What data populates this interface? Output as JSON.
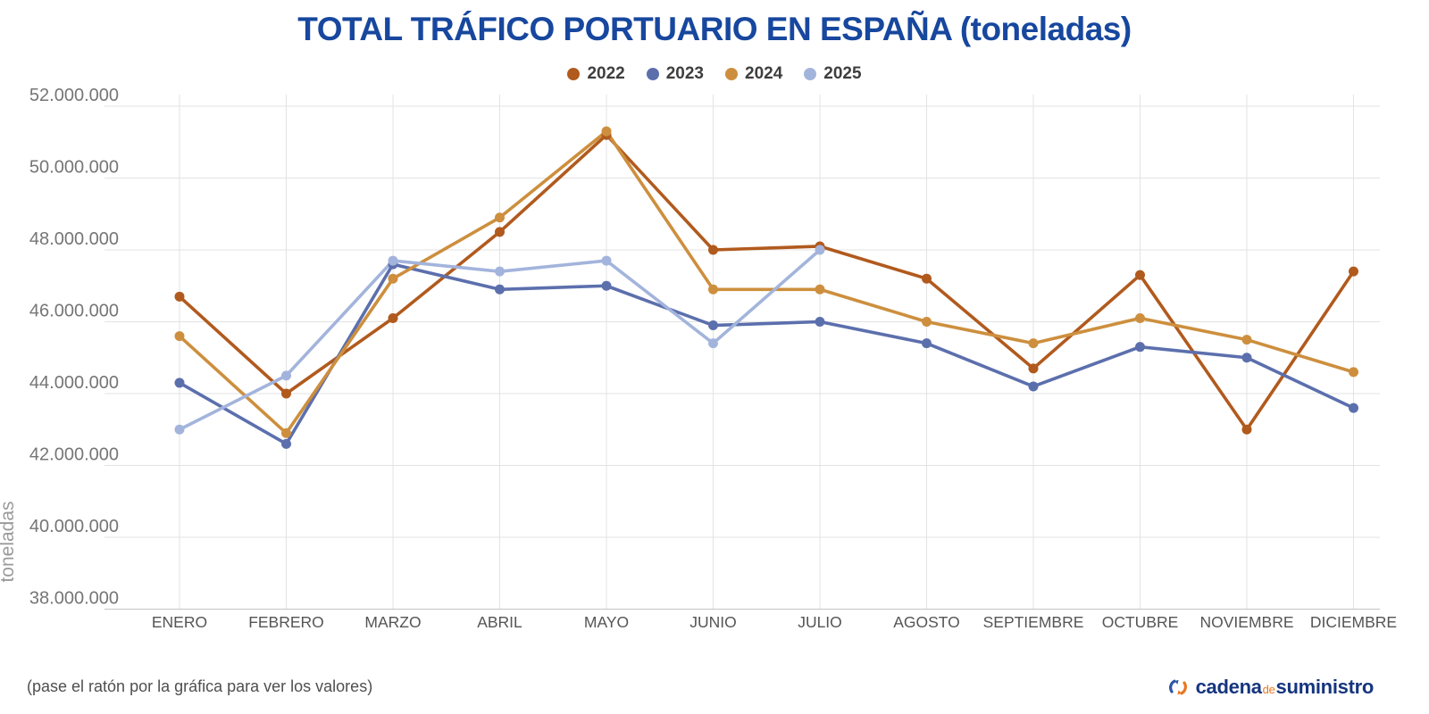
{
  "header": {
    "title": "TOTAL TRÁFICO PORTUARIO EN ESPAÑA (toneladas)",
    "title_color": "#17479e"
  },
  "chart_data": {
    "type": "line",
    "title": "TOTAL TRÁFICO PORTUARIO EN ESPAÑA (toneladas)",
    "xlabel": "",
    "ylabel": "toneladas",
    "ylim": [
      38000000,
      52000000
    ],
    "grid": true,
    "legend_position": "top",
    "categories": [
      "ENERO",
      "FEBRERO",
      "MARZO",
      "ABRIL",
      "MAYO",
      "JUNIO",
      "JULIO",
      "AGOSTO",
      "SEPTIEMBRE",
      "OCTUBRE",
      "NOVIEMBRE",
      "DICIEMBRE"
    ],
    "y_ticks": [
      {
        "label": "52.000.000",
        "value": 52000000
      },
      {
        "label": "50.000.000",
        "value": 50000000
      },
      {
        "label": "48.000.000",
        "value": 48000000
      },
      {
        "label": "46.000.000",
        "value": 46000000
      },
      {
        "label": "44.000.000",
        "value": 44000000
      },
      {
        "label": "42.000.000",
        "value": 42000000
      },
      {
        "label": "40.000.000",
        "value": 40000000
      },
      {
        "label": "38.000.000",
        "value": 38000000
      }
    ],
    "series": [
      {
        "name": "2022",
        "color": "#b15a1e",
        "values": [
          46700000,
          44000000,
          46100000,
          48500000,
          51200000,
          48000000,
          48100000,
          47200000,
          44700000,
          47300000,
          43000000,
          47400000
        ]
      },
      {
        "name": "2023",
        "color": "#5c6fad",
        "values": [
          44300000,
          42600000,
          47600000,
          46900000,
          47000000,
          45900000,
          46000000,
          45400000,
          44200000,
          45300000,
          45000000,
          43600000
        ]
      },
      {
        "name": "2024",
        "color": "#cd8f3e",
        "values": [
          45600000,
          42900000,
          47200000,
          48900000,
          51300000,
          46900000,
          46900000,
          46000000,
          45400000,
          46100000,
          45500000,
          44600000
        ]
      },
      {
        "name": "2025",
        "color": "#a3b4dc",
        "values": [
          43000000,
          44500000,
          47700000,
          47400000,
          47700000,
          45400000,
          48000000,
          null,
          null,
          null,
          null,
          null
        ]
      }
    ],
    "styles": {
      "grid_color": "#e3e3e3",
      "axis_line_color": "#c4c4c4",
      "tick_label_color": "#757575",
      "month_label_color": "#555555",
      "ylabel_color": "#9a9a9a"
    }
  },
  "footer": {
    "hint": "(pase el ratón por la gráfica para ver los valores)",
    "logo": {
      "word1": "cadena",
      "word2": "de",
      "word3": "suministro",
      "text_color": "#16357e",
      "accent_color": "#e87722"
    }
  }
}
